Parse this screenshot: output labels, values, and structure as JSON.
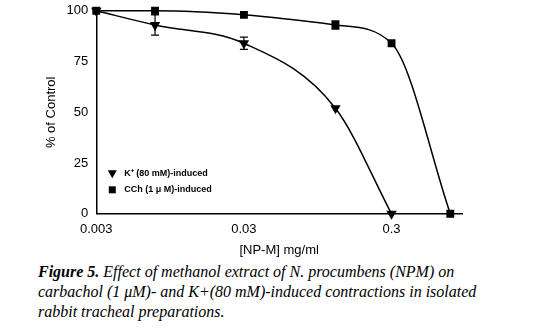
{
  "chart_data": {
    "type": "line",
    "title": "Figure 5. Effect of methanol extract of N. procumbens (NPM) on carbachol (1 μM)- and K+(80 mM)-induced contractions in isolated rabbit tracheal preparations.",
    "x_label": "[NP-M] mg/ml",
    "y_label": "% of Control",
    "log": "x",
    "xlim": [
      0.003,
      0.9
    ],
    "xticks": [
      0.003,
      0.03,
      0.3
    ],
    "ylim": [
      0,
      100
    ],
    "yticks": [
      0,
      25,
      50,
      75,
      100
    ],
    "grid": false,
    "legend": "lower left",
    "series": [
      {
        "name": "K⁺ (80 mM)-induced",
        "color": "#000000",
        "marker": "triangle-down",
        "line_style": "solid",
        "x": [
          0.003,
          0.0075,
          0.03,
          0.125,
          0.3
        ],
        "values": [
          100,
          93,
          84,
          52,
          0
        ],
        "errors": [
          null,
          5,
          3,
          null,
          null
        ]
      },
      {
        "name": "CCh (1 μ M)-induced",
        "color": "#000000",
        "marker": "square",
        "line_style": "solid",
        "x": [
          0.003,
          0.0075,
          0.03,
          0.125,
          0.3,
          0.75
        ],
        "values": [
          100,
          100,
          98,
          93,
          84,
          0
        ],
        "errors": [
          null,
          null,
          null,
          2,
          null,
          null
        ]
      }
    ]
  }
}
